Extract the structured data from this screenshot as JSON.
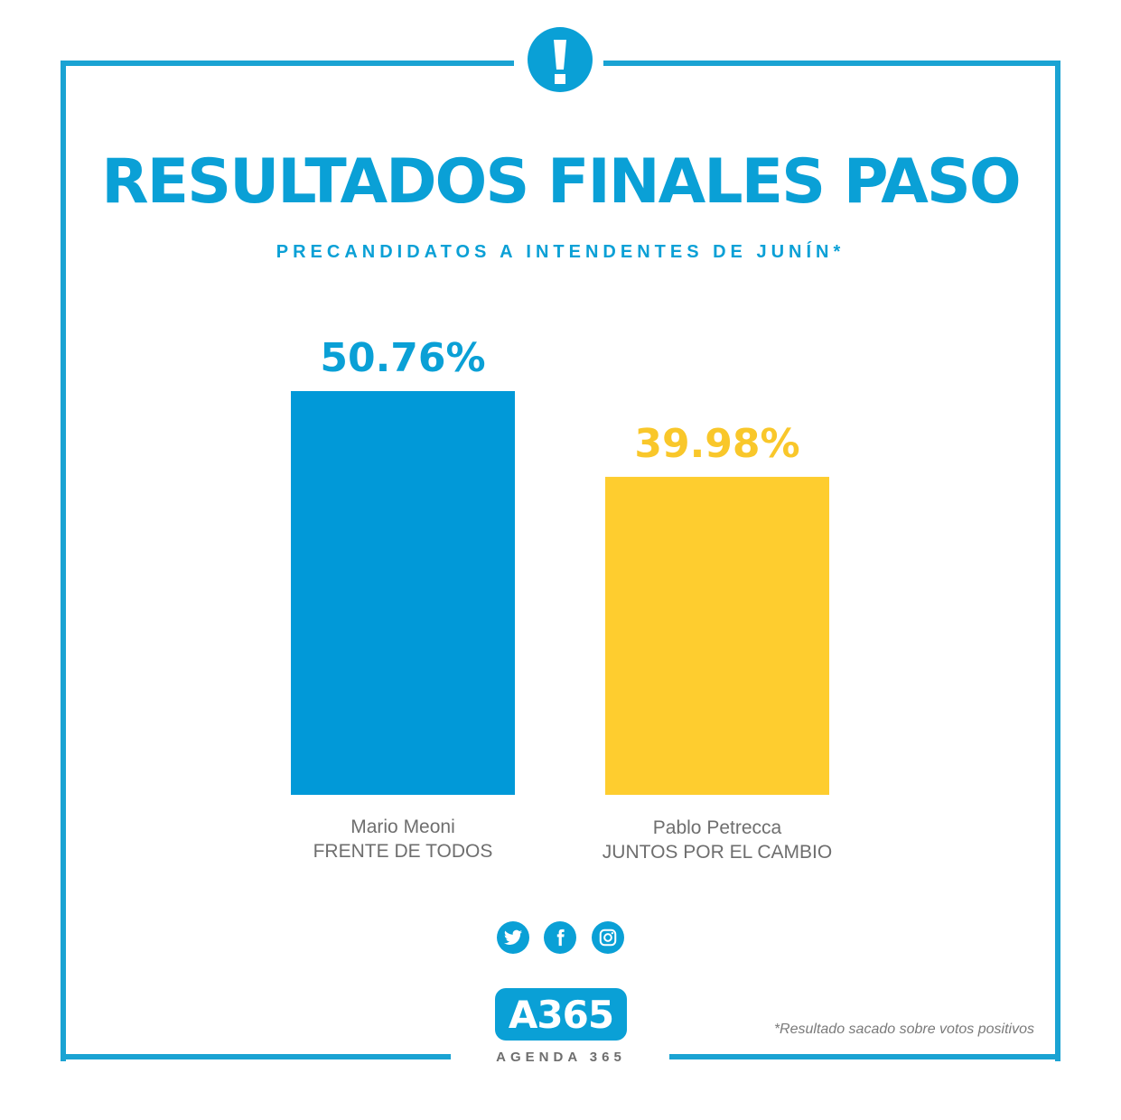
{
  "header": {
    "title": "RESULTADOS FINALES PASO",
    "subtitle": "PRECANDIDATOS A INTENDENTES DE JUNÍN*",
    "alert_icon": "exclamation-icon"
  },
  "chart_data": {
    "type": "bar",
    "title": "RESULTADOS FINALES PASO",
    "subtitle": "PRECANDIDATOS A INTENDENTES DE JUNÍN*",
    "categories": [
      "Mario Meoni",
      "Pablo Petrecca"
    ],
    "parties": [
      "FRENTE DE TODOS",
      "JUNTOS POR EL CAMBIO"
    ],
    "values": [
      50.76,
      39.98
    ],
    "value_labels": [
      "50.76%",
      "39.98%"
    ],
    "colors": [
      "#0199d8",
      "#fecd2f"
    ],
    "label_colors": [
      "#0aa0d6",
      "#f9c72a"
    ],
    "ylim": [
      0,
      50.76
    ],
    "grid": false,
    "unit": "%"
  },
  "social": {
    "icons": [
      "twitter-icon",
      "facebook-icon",
      "instagram-icon"
    ]
  },
  "brand": {
    "logo": "A365",
    "name": "AGENDA 365",
    "color": "#0aa0d6"
  },
  "footnote": "*Resultado sacado sobre votos positivos"
}
